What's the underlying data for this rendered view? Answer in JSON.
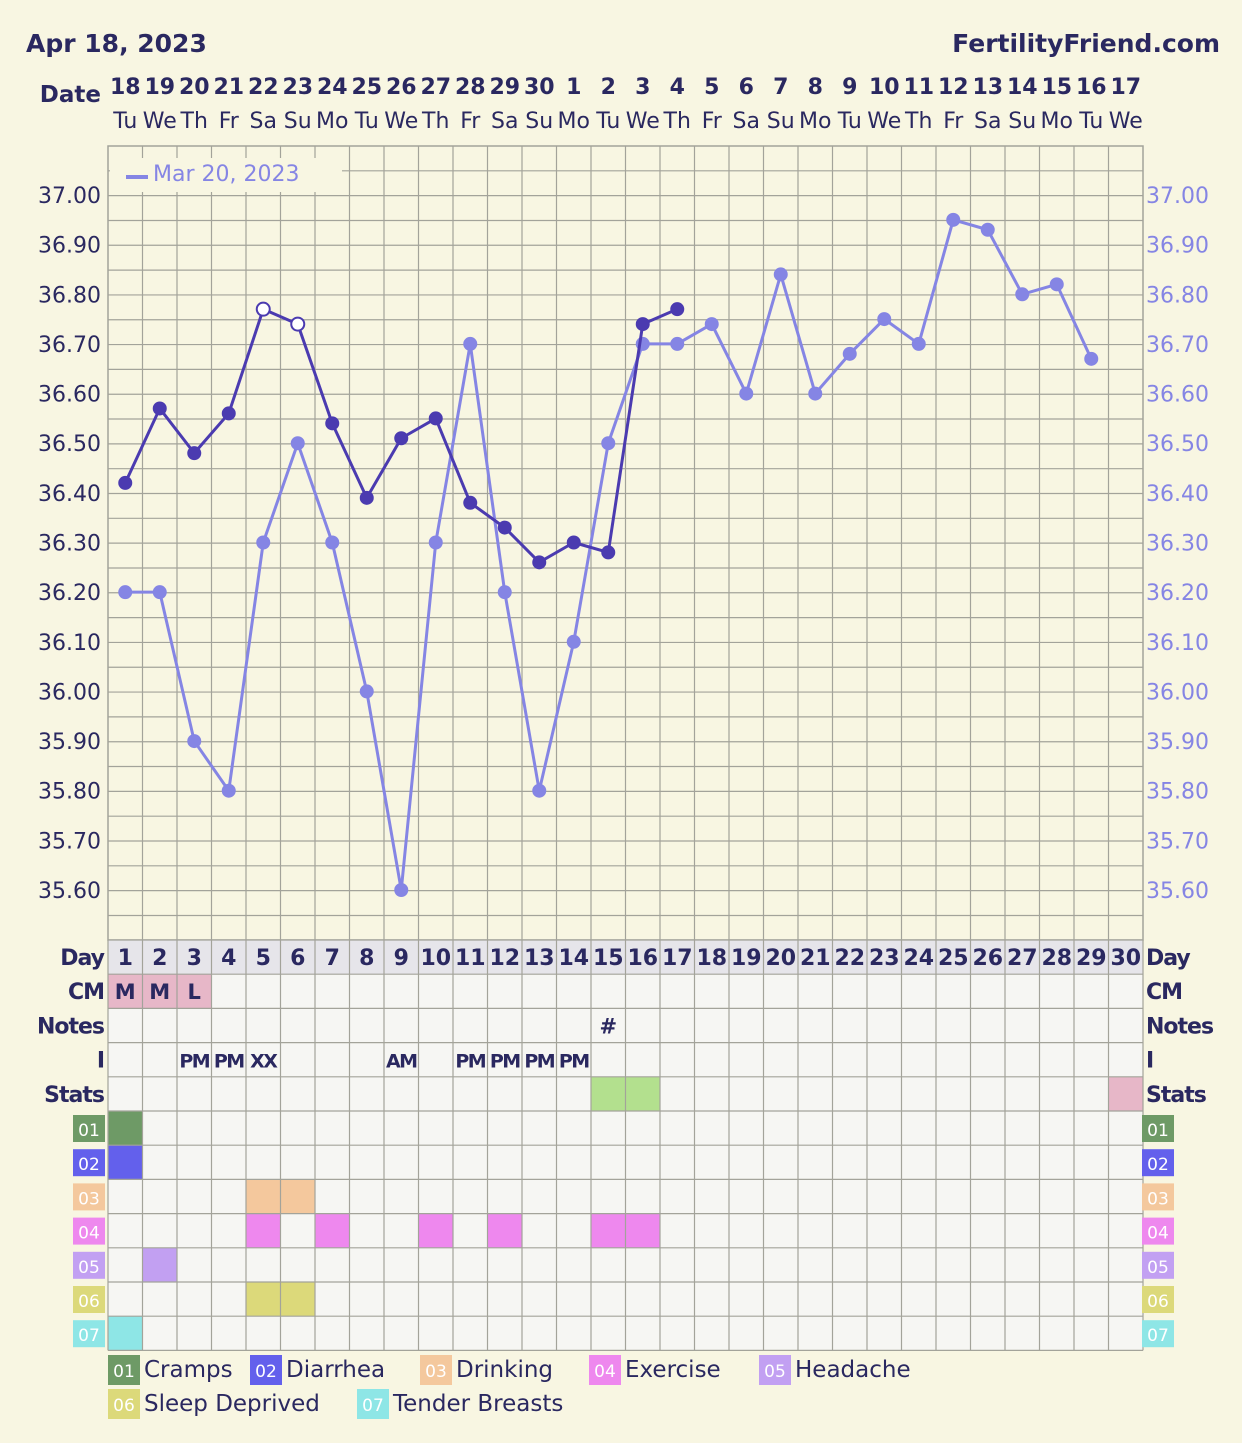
{
  "header": {
    "date": "Apr 18, 2023",
    "brand": "FertilityFriend.com"
  },
  "labels": {
    "date": "Date",
    "day": "Day",
    "cm": "CM",
    "notes": "Notes",
    "i": "I",
    "stats": "Stats"
  },
  "legend_box": {
    "label": "Mar 20, 2023"
  },
  "colors": {
    "background": "#f8f6e2",
    "grid": "#a3a39a",
    "current": "#4b3bb0",
    "previous": "#8585e4",
    "text": "#2a2860"
  },
  "dates": [
    "18",
    "19",
    "20",
    "21",
    "22",
    "23",
    "24",
    "25",
    "26",
    "27",
    "28",
    "29",
    "30",
    "1",
    "2",
    "3",
    "4",
    "5",
    "6",
    "7",
    "8",
    "9",
    "10",
    "11",
    "12",
    "13",
    "14",
    "15",
    "16",
    "17"
  ],
  "weekdays": [
    "Tu",
    "We",
    "Th",
    "Fr",
    "Sa",
    "Su",
    "Mo",
    "Tu",
    "We",
    "Th",
    "Fr",
    "Sa",
    "Su",
    "Mo",
    "Tu",
    "We",
    "Th",
    "Fr",
    "Sa",
    "Su",
    "Mo",
    "Tu",
    "We",
    "Th",
    "Fr",
    "Sa",
    "Su",
    "Mo",
    "Tu",
    "We"
  ],
  "days": [
    "1",
    "2",
    "3",
    "4",
    "5",
    "6",
    "7",
    "8",
    "9",
    "10",
    "11",
    "12",
    "13",
    "14",
    "15",
    "16",
    "17",
    "18",
    "19",
    "20",
    "21",
    "22",
    "23",
    "24",
    "25",
    "26",
    "27",
    "28",
    "29",
    "30"
  ],
  "cm_row": [
    "M",
    "M",
    "L",
    "",
    "",
    "",
    "",
    "",
    "",
    "",
    "",
    "",
    "",
    "",
    "",
    "",
    "",
    "",
    "",
    "",
    "",
    "",
    "",
    "",
    "",
    "",
    "",
    "",
    "",
    ""
  ],
  "notes_row": [
    "",
    "",
    "",
    "",
    "",
    "",
    "",
    "",
    "",
    "",
    "",
    "",
    "",
    "",
    "#",
    "",
    "",
    "",
    "",
    "",
    "",
    "",
    "",
    "",
    "",
    "",
    "",
    "",
    "",
    ""
  ],
  "i_row": [
    "",
    "",
    "PM",
    "PM",
    "XX",
    "",
    "",
    "",
    "AM",
    "",
    "PM",
    "PM",
    "PM",
    "PM",
    "",
    "",
    "",
    "",
    "",
    "",
    "",
    "",
    "",
    "",
    "",
    "",
    "",
    "",
    "",
    ""
  ],
  "stats_fill": [
    0,
    0,
    0,
    0,
    0,
    0,
    0,
    0,
    0,
    0,
    0,
    0,
    0,
    0,
    1,
    1,
    0,
    0,
    0,
    0,
    0,
    0,
    0,
    0,
    0,
    0,
    0,
    0,
    0,
    2
  ],
  "symptoms": [
    {
      "code": "01",
      "name": "Cramps",
      "color": "#6e9a66",
      "days": [
        1
      ]
    },
    {
      "code": "02",
      "name": "Diarrhea",
      "color": "#6360ec",
      "days": [
        1
      ]
    },
    {
      "code": "03",
      "name": "Drinking",
      "color": "#f4c89d",
      "days": [
        5,
        6
      ]
    },
    {
      "code": "04",
      "name": "Exercise",
      "color": "#ee88ee",
      "days": [
        5,
        7,
        10,
        12,
        15,
        16
      ]
    },
    {
      "code": "05",
      "name": "Headache",
      "color": "#c2a0f2",
      "days": [
        2
      ]
    },
    {
      "code": "06",
      "name": "Sleep Deprived",
      "color": "#dcd97a",
      "days": [
        5,
        6
      ]
    },
    {
      "code": "07",
      "name": "Tender Breasts",
      "color": "#8ee6e6",
      "days": [
        1
      ]
    }
  ],
  "chart_data": {
    "type": "line",
    "ylim": [
      35.5,
      37.1
    ],
    "yticks": [
      "35.60",
      "35.70",
      "35.80",
      "35.90",
      "36.00",
      "36.10",
      "36.20",
      "36.30",
      "36.40",
      "36.50",
      "36.60",
      "36.70",
      "36.80",
      "36.90",
      "37.00"
    ],
    "series": [
      {
        "values": [
          36.42,
          36.57,
          36.48,
          36.56,
          36.77,
          36.74,
          36.54,
          36.39,
          36.51,
          36.55,
          36.38,
          36.33,
          36.26,
          36.3,
          36.28,
          36.74,
          36.77
        ],
        "hollow": [
          4,
          5
        ]
      },
      {
        "name": "Mar 20, 2023",
        "values": [
          36.2,
          36.2,
          35.9,
          35.8,
          36.3,
          36.5,
          36.3,
          36.0,
          35.6,
          36.3,
          36.7,
          36.2,
          35.8,
          36.1,
          36.5,
          36.7,
          36.7,
          36.74,
          36.6,
          36.84,
          36.6,
          36.68,
          36.75,
          36.7,
          36.95,
          36.93,
          36.8,
          36.82,
          36.67
        ]
      }
    ]
  }
}
